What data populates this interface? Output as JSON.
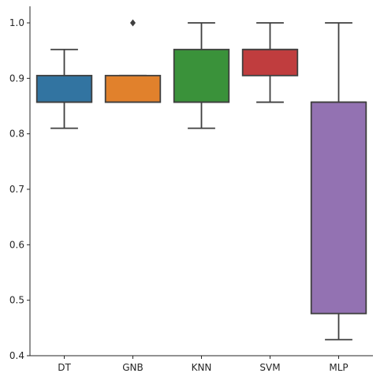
{
  "chart_data": {
    "type": "box",
    "title": "",
    "xlabel": "",
    "ylabel": "",
    "categories": [
      "DT",
      "GNB",
      "KNN",
      "SVM",
      "MLP"
    ],
    "ylim": [
      0.4,
      1.02
    ],
    "yticks": [
      0.4,
      0.5,
      0.6,
      0.7,
      0.8,
      0.9,
      1.0
    ],
    "ytick_labels": [
      "0.4",
      "0.5",
      "0.6",
      "0.7",
      "0.8",
      "0.9",
      "1.0"
    ],
    "grid": false,
    "boxes": [
      {
        "category": "DT",
        "whisker_low": 0.81,
        "q1": 0.857,
        "median": 0.857,
        "q3": 0.905,
        "whisker_high": 0.952,
        "outliers": [],
        "color": "#3274a1"
      },
      {
        "category": "GNB",
        "whisker_low": 0.857,
        "q1": 0.857,
        "median": 0.857,
        "q3": 0.905,
        "whisker_high": 0.905,
        "outliers": [
          1.0
        ],
        "color": "#e1812c"
      },
      {
        "category": "KNN",
        "whisker_low": 0.81,
        "q1": 0.857,
        "median": 0.857,
        "q3": 0.952,
        "whisker_high": 1.0,
        "outliers": [],
        "color": "#3a923a"
      },
      {
        "category": "SVM",
        "whisker_low": 0.857,
        "q1": 0.905,
        "median": 0.952,
        "q3": 0.952,
        "whisker_high": 1.0,
        "outliers": [],
        "color": "#c03d3e"
      },
      {
        "category": "MLP",
        "whisker_low": 0.429,
        "q1": 0.476,
        "median": 0.857,
        "q3": 0.857,
        "whisker_high": 1.0,
        "outliers": [],
        "color": "#9372b2"
      }
    ]
  }
}
